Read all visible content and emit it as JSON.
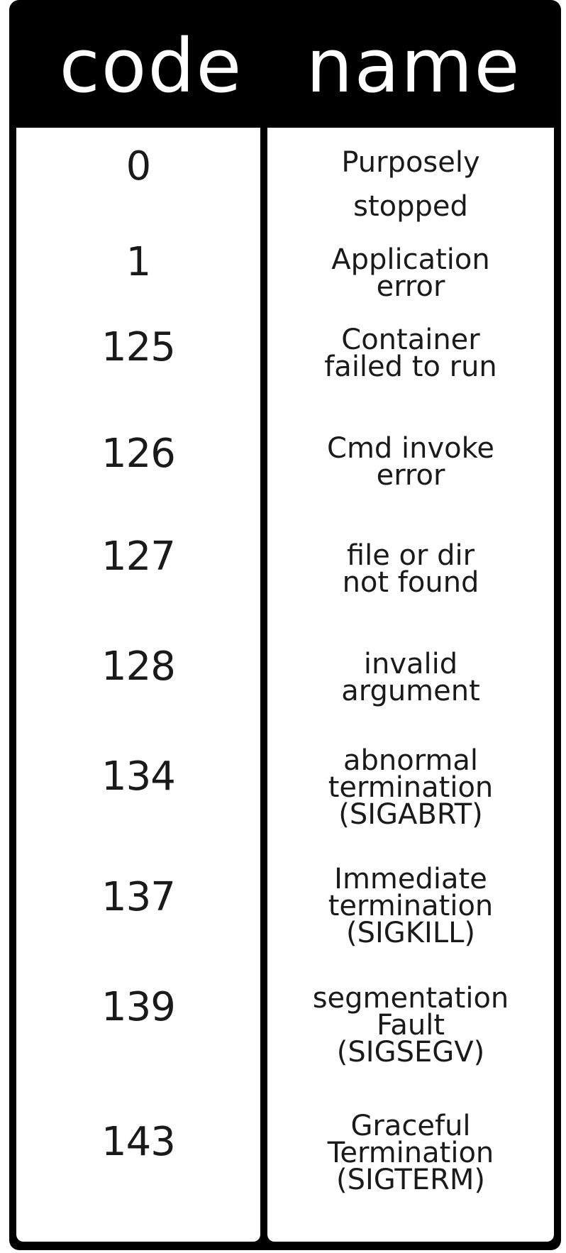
{
  "table": {
    "headers": {
      "code": "code",
      "name": "name"
    },
    "rows": [
      {
        "code": "0",
        "name": [
          "Purposely",
          "stopped"
        ]
      },
      {
        "code": "1",
        "name": [
          "Application",
          "error"
        ]
      },
      {
        "code": "125",
        "name": [
          "Container",
          "failed to run"
        ]
      },
      {
        "code": "126",
        "name": [
          "Cmd invoke",
          "error"
        ]
      },
      {
        "code": "127",
        "name": [
          "file or dir",
          "not found"
        ]
      },
      {
        "code": "128",
        "name": [
          "invalid",
          "argument"
        ]
      },
      {
        "code": "134",
        "name": [
          "abnormal",
          "termination",
          "(SIGABRT)"
        ]
      },
      {
        "code": "137",
        "name": [
          "Immediate",
          "termination",
          "(SIGKILL)"
        ]
      },
      {
        "code": "139",
        "name": [
          "segmentation",
          "Fault",
          "(SIGSEGV)"
        ]
      },
      {
        "code": "143",
        "name": [
          "Graceful",
          "Termination",
          "(SIGTERM)"
        ]
      }
    ]
  },
  "colors": {
    "frame": "#000000",
    "header_text": "#ffffff",
    "cell_bg": "#ffffff",
    "cell_text": "#1a1a1a"
  }
}
